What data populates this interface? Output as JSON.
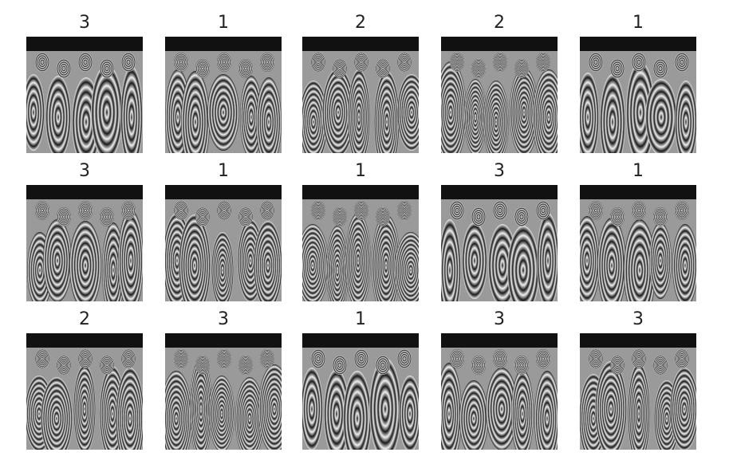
{
  "grid": {
    "panels": [
      {
        "label": "3"
      },
      {
        "label": "1"
      },
      {
        "label": "2"
      },
      {
        "label": "2"
      },
      {
        "label": "1"
      },
      {
        "label": "3"
      },
      {
        "label": "1"
      },
      {
        "label": "1"
      },
      {
        "label": "3"
      },
      {
        "label": "1"
      },
      {
        "label": "2"
      },
      {
        "label": "3"
      },
      {
        "label": "1"
      },
      {
        "label": "3"
      },
      {
        "label": "3"
      }
    ]
  }
}
